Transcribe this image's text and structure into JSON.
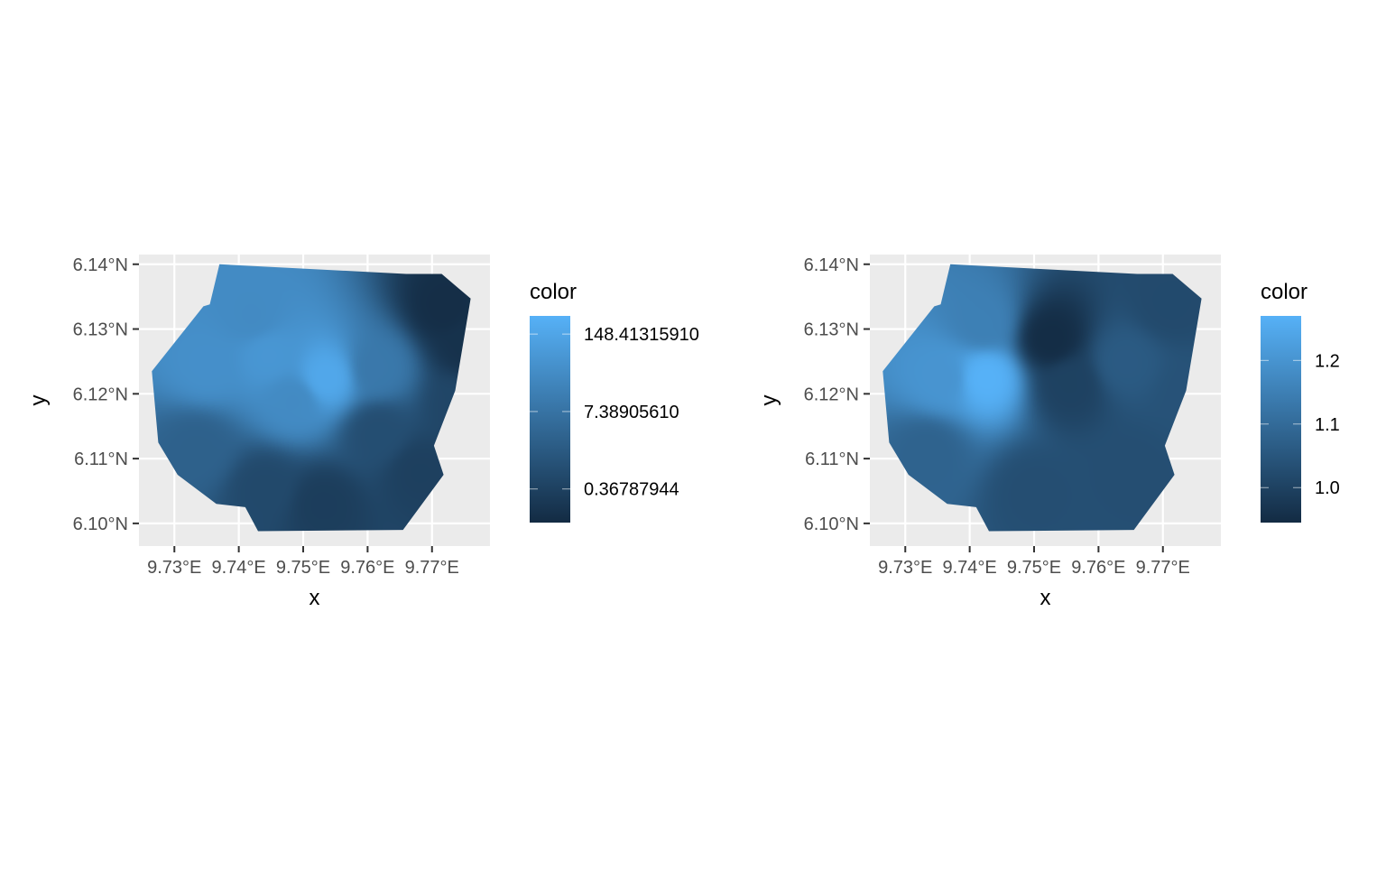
{
  "panels": [
    {
      "id": "left",
      "xlabel": "x",
      "ylabel": "y",
      "x_ticks": [
        "9.73°E",
        "9.74°E",
        "9.75°E",
        "9.76°E",
        "9.77°E"
      ],
      "y_ticks": [
        "6.14°N",
        "6.13°N",
        "6.12°N",
        "6.11°N",
        "6.10°N"
      ],
      "legend": {
        "title": "color",
        "labels": [
          "148.41315910",
          "7.38905610",
          "0.36787944"
        ]
      }
    },
    {
      "id": "right",
      "xlabel": "x",
      "ylabel": "y",
      "x_ticks": [
        "9.73°E",
        "9.74°E",
        "9.75°E",
        "9.76°E",
        "9.77°E"
      ],
      "y_ticks": [
        "6.14°N",
        "6.13°N",
        "6.12°N",
        "6.11°N",
        "6.10°N"
      ],
      "legend": {
        "title": "color",
        "labels": [
          "1.2",
          "1.1",
          "1.0"
        ]
      }
    }
  ],
  "colors": {
    "panel_background": "#ebebeb",
    "grid": "#ffffff",
    "gradient_low": "#132b43",
    "gradient_high": "#56b1f7"
  },
  "chart_data": [
    {
      "type": "heatmap",
      "xlabel": "x",
      "ylabel": "y",
      "x_ticks": [
        9.73,
        9.74,
        9.75,
        9.76,
        9.77
      ],
      "y_ticks": [
        6.1,
        6.11,
        6.12,
        6.13,
        6.14
      ],
      "xlim": [
        9.7245,
        9.779
      ],
      "ylim": [
        6.0965,
        6.1415
      ],
      "color_scale": {
        "title": "color",
        "low": "#132b43",
        "high": "#56b1f7",
        "scale": "log",
        "breaks": [
          148.4131591,
          7.3890561,
          0.36787944
        ],
        "range": [
          0.1,
          300
        ]
      },
      "grid": true,
      "legend_position": "right",
      "boundary": [
        [
          9.737,
          6.14
        ],
        [
          9.766,
          6.1385
        ],
        [
          9.7715,
          6.1385
        ],
        [
          9.776,
          6.1347
        ],
        [
          9.7736,
          6.1205
        ],
        [
          9.7703,
          6.112
        ],
        [
          9.7718,
          6.1075
        ],
        [
          9.7655,
          6.099
        ],
        [
          9.743,
          6.0988
        ],
        [
          9.741,
          6.1025
        ],
        [
          9.7365,
          6.103
        ],
        [
          9.7305,
          6.1075
        ],
        [
          9.7275,
          6.1125
        ],
        [
          9.7265,
          6.1235
        ],
        [
          9.7345,
          6.1335
        ],
        [
          9.7355,
          6.1338
        ]
      ],
      "hotspots": [
        {
          "x": 9.7535,
          "y": 6.1225,
          "value": 170
        },
        {
          "x": 9.7445,
          "y": 6.126,
          "value": 60
        },
        {
          "x": 9.735,
          "y": 6.1245,
          "value": 40
        },
        {
          "x": 9.742,
          "y": 6.132,
          "value": 30
        },
        {
          "x": 9.7485,
          "y": 6.119,
          "value": 30
        },
        {
          "x": 9.7615,
          "y": 6.124,
          "value": 10
        },
        {
          "x": 9.772,
          "y": 6.1335,
          "value": 0.12
        },
        {
          "x": 9.7755,
          "y": 6.128,
          "value": 0.15
        },
        {
          "x": 9.753,
          "y": 6.103,
          "value": 0.3
        },
        {
          "x": 9.744,
          "y": 6.1055,
          "value": 0.6
        },
        {
          "x": 9.768,
          "y": 6.108,
          "value": 0.35
        },
        {
          "x": 9.7745,
          "y": 6.118,
          "value": 0.5
        },
        {
          "x": 9.7335,
          "y": 6.1115,
          "value": 2.5
        },
        {
          "x": 9.7615,
          "y": 6.114,
          "value": 0.8
        }
      ]
    },
    {
      "type": "heatmap",
      "xlabel": "x",
      "ylabel": "y",
      "x_ticks": [
        9.73,
        9.74,
        9.75,
        9.76,
        9.77
      ],
      "y_ticks": [
        6.1,
        6.11,
        6.12,
        6.13,
        6.14
      ],
      "xlim": [
        9.7245,
        9.779
      ],
      "ylim": [
        6.0965,
        6.1415
      ],
      "color_scale": {
        "title": "color",
        "low": "#132b43",
        "high": "#56b1f7",
        "scale": "linear",
        "breaks": [
          1.2,
          1.1,
          1.0
        ],
        "range": [
          0.945,
          1.27
        ]
      },
      "grid": true,
      "legend_position": "right",
      "boundary": [
        [
          9.737,
          6.14
        ],
        [
          9.766,
          6.1385
        ],
        [
          9.7715,
          6.1385
        ],
        [
          9.776,
          6.1347
        ],
        [
          9.7736,
          6.1205
        ],
        [
          9.7703,
          6.112
        ],
        [
          9.7718,
          6.1075
        ],
        [
          9.7655,
          6.099
        ],
        [
          9.743,
          6.0988
        ],
        [
          9.741,
          6.1025
        ],
        [
          9.7365,
          6.103
        ],
        [
          9.7305,
          6.1075
        ],
        [
          9.7275,
          6.1125
        ],
        [
          9.7265,
          6.1235
        ],
        [
          9.7345,
          6.1335
        ],
        [
          9.7355,
          6.1338
        ]
      ],
      "hotspots": [
        {
          "x": 9.7425,
          "y": 6.1225,
          "value": 1.27
        },
        {
          "x": 9.7355,
          "y": 6.1225,
          "value": 1.2
        },
        {
          "x": 9.742,
          "y": 6.131,
          "value": 1.15
        },
        {
          "x": 9.7525,
          "y": 6.1285,
          "value": 0.95
        },
        {
          "x": 9.7555,
          "y": 6.1215,
          "value": 1.0
        },
        {
          "x": 9.771,
          "y": 6.134,
          "value": 1.02
        },
        {
          "x": 9.764,
          "y": 6.125,
          "value": 1.06
        },
        {
          "x": 9.75,
          "y": 6.105,
          "value": 1.03
        },
        {
          "x": 9.765,
          "y": 6.108,
          "value": 1.03
        },
        {
          "x": 9.7335,
          "y": 6.111,
          "value": 1.08
        },
        {
          "x": 9.7745,
          "y": 6.12,
          "value": 1.04
        }
      ]
    }
  ]
}
